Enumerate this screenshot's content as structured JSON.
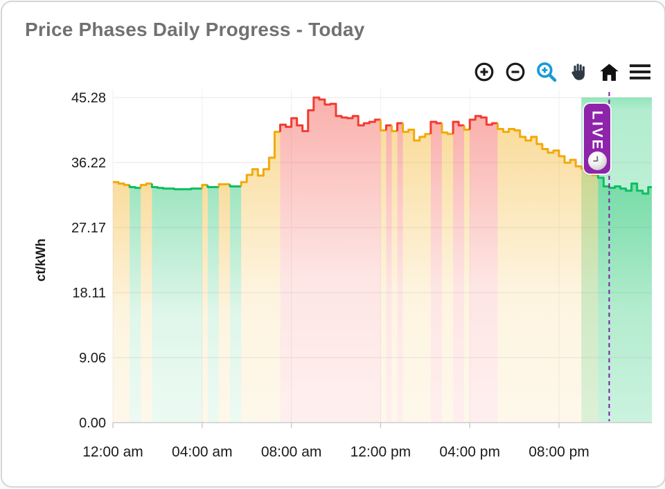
{
  "card": {
    "title": "Price Phases Daily Progress - Today"
  },
  "toolbar": {
    "icons": [
      {
        "name": "zoom-in",
        "color": "#1b1b1b"
      },
      {
        "name": "zoom-out",
        "color": "#1b1b1b"
      },
      {
        "name": "box-zoom",
        "color": "#189bd7",
        "active": true
      },
      {
        "name": "pan-hand",
        "color": "#2e3a45"
      },
      {
        "name": "home-reset",
        "color": "#111111"
      },
      {
        "name": "menu",
        "color": "#1b1b1b"
      }
    ]
  },
  "live_badge": {
    "label": "LIVE",
    "color": "#8e24aa"
  },
  "chart_data": {
    "type": "area",
    "title": "Price Phases Daily Progress - Today",
    "xlabel": "",
    "ylabel": "ct/kWh",
    "unit": "ct/kWh",
    "grid": true,
    "ylim": [
      0,
      45.28
    ],
    "y_ticks": [
      "0.00",
      "9.06",
      "18.11",
      "27.17",
      "36.22",
      "45.28"
    ],
    "y_tick_values": [
      0,
      9.06,
      18.11,
      27.17,
      36.22,
      45.28
    ],
    "x_tick_labels": [
      "12:00 am",
      "04:00 am",
      "08:00 am",
      "12:00 pm",
      "04:00 pm",
      "08:00 pm"
    ],
    "x_tick_hours": [
      0,
      4,
      8,
      12,
      16,
      20
    ],
    "x_start_hour": 0,
    "step_hours": 0.25,
    "phase_colors": {
      "G": "#0ebe62",
      "Y": "#f2a90a",
      "R": "#f23b30"
    },
    "phases": "YYYGGYYGGGGGGGGGYGGYYGGYYYYYYYRRRRRRRRRRRRRRRRRRYRYRYYYYYRRYYRRYRRRRRYYYYYYYYYYYYYYYYYYGGGGGGGGGG",
    "values": [
      33.5,
      33.3,
      33.1,
      32.8,
      32.7,
      33.1,
      33.3,
      32.8,
      32.7,
      32.6,
      32.6,
      32.5,
      32.5,
      32.5,
      32.6,
      32.6,
      33.1,
      32.8,
      32.8,
      33.2,
      33.2,
      32.9,
      32.9,
      33.5,
      34.5,
      35.3,
      34.4,
      35.3,
      36.9,
      40.5,
      41.5,
      41.2,
      42.4,
      41.4,
      40.6,
      43.5,
      45.28,
      45.0,
      44.3,
      44.4,
      42.7,
      42.5,
      42.4,
      42.7,
      41.4,
      41.7,
      41.9,
      42.2,
      40.7,
      41.4,
      40.6,
      41.7,
      40.5,
      40.8,
      39.3,
      39.8,
      40.2,
      41.9,
      41.7,
      40.4,
      40.2,
      41.9,
      41.4,
      40.8,
      42.2,
      42.7,
      42.5,
      41.5,
      41.7,
      40.9,
      40.5,
      40.9,
      40.7,
      39.8,
      39.3,
      39.8,
      38.8,
      38.1,
      37.6,
      37.9,
      37.1,
      36.2,
      36.6,
      35.7,
      35.4,
      35.0,
      34.5,
      34.1,
      32.9,
      32.7,
      32.9,
      32.6,
      32.3,
      33.3,
      32.3,
      31.9,
      32.8
    ],
    "live_marker_hour": 22.25,
    "future_region_start_hour": 21.0,
    "future_region_color": "#10c66a",
    "live_line_color": "#7b1fa2"
  }
}
